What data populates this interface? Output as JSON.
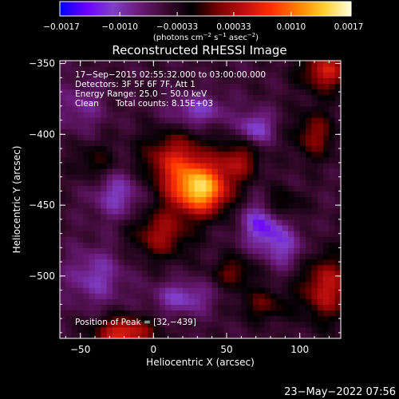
{
  "chart_data": {
    "type": "heatmap",
    "title": "Reconstructed RHESSI Image",
    "xlabel": "Heliocentric X (arcsec)",
    "ylabel": "Heliocentric Y (arcsec)",
    "xlim": [
      -64,
      128
    ],
    "ylim": [
      -544,
      -348
    ],
    "x_ticks": [
      -50,
      0,
      50,
      100
    ],
    "y_ticks": [
      -350,
      -400,
      -450,
      -500
    ],
    "x_tick_labels": [
      "−50",
      "0",
      "50",
      "100"
    ],
    "y_tick_labels": [
      "−350",
      "−400",
      "−450",
      "−500"
    ],
    "colorbar": {
      "min": -0.0017,
      "max": 0.0017,
      "ticks": [
        -0.0017,
        -0.001,
        -0.00033,
        0.00033,
        0.001,
        0.0017
      ],
      "tick_labels": [
        "−0.0017",
        "−0.0010",
        "−0.00033",
        "0.00033",
        "0.0010",
        "0.0017"
      ],
      "unit_prefix": "(photons cm",
      "unit_exp1": "−2",
      "unit_mid": " s",
      "unit_exp2": "−1",
      "unit_mid2": " asec",
      "unit_exp3": "−2",
      "unit_suffix": ")",
      "colors": [
        "#0000ff",
        "#6a00ff",
        "#8040c8",
        "#6a1a78",
        "#3a0a30",
        "#000000",
        "#7a0000",
        "#c01010",
        "#ff3000",
        "#ff8000",
        "#ffd030",
        "#ffffe0"
      ]
    },
    "annotations": [
      "17−Sep−2015 02:55:32.000 to 03:00:00.000",
      "Detectors: 3F 5F 6F 7F, Att 1",
      "Energy Range: 25.0 − 50.0 keV",
      "Clean",
      "Total counts: 8.15E+03"
    ],
    "peak_label": "Position of Peak = [32,−439]",
    "peak": [
      32,
      -439
    ],
    "sources": [
      {
        "x": 32,
        "y": -439,
        "sx": 14,
        "sy": 12,
        "amp": 0.00175
      },
      {
        "x": 15,
        "y": -418,
        "sx": 16,
        "sy": 14,
        "amp": 0.0009
      },
      {
        "x": 58,
        "y": -418,
        "sx": 10,
        "sy": 10,
        "amp": 0.0007
      },
      {
        "x": 5,
        "y": -470,
        "sx": 14,
        "sy": 12,
        "amp": 0.00075
      },
      {
        "x": 85,
        "y": -450,
        "sx": 10,
        "sy": 8,
        "amp": 0.0006
      },
      {
        "x": 110,
        "y": -400,
        "sx": 10,
        "sy": 12,
        "amp": 0.00065
      },
      {
        "x": 118,
        "y": -355,
        "sx": 12,
        "sy": 10,
        "amp": 0.00095
      },
      {
        "x": -20,
        "y": -540,
        "sx": 14,
        "sy": 8,
        "amp": 0.0011
      },
      {
        "x": 118,
        "y": -508,
        "sx": 12,
        "sy": 16,
        "amp": 0.0009
      },
      {
        "x": 55,
        "y": -497,
        "sx": 10,
        "sy": 8,
        "amp": 0.00055
      },
      {
        "x": 75,
        "y": -520,
        "sx": 12,
        "sy": 8,
        "amp": 0.0005
      },
      {
        "x": -40,
        "y": -420,
        "sx": 10,
        "sy": 10,
        "amp": 0.0004
      },
      {
        "x": 70,
        "y": -395,
        "sx": 8,
        "sy": 8,
        "amp": -0.0007
      },
      {
        "x": 75,
        "y": -462,
        "sx": 10,
        "sy": 12,
        "amp": -0.0009
      },
      {
        "x": 30,
        "y": -383,
        "sx": 14,
        "sy": 8,
        "amp": -0.0006
      },
      {
        "x": -25,
        "y": -442,
        "sx": 12,
        "sy": 12,
        "amp": -0.0006
      },
      {
        "x": -40,
        "y": -500,
        "sx": 14,
        "sy": 14,
        "amp": -0.00055
      },
      {
        "x": 20,
        "y": -515,
        "sx": 14,
        "sy": 8,
        "amp": -0.0006
      },
      {
        "x": 90,
        "y": -480,
        "sx": 10,
        "sy": 10,
        "amp": -0.0005
      },
      {
        "x": -50,
        "y": -380,
        "sx": 12,
        "sy": 12,
        "amp": -0.0004
      }
    ],
    "background_level": -0.00045
  },
  "timestamp": "23−May−2022 07:56"
}
